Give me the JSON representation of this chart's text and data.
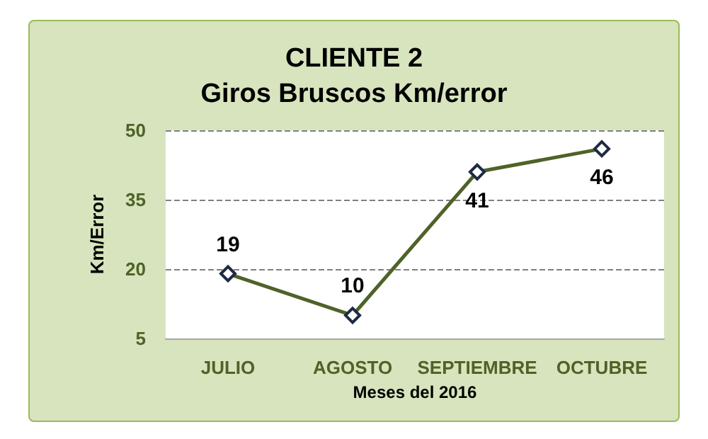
{
  "chart_data": {
    "type": "line",
    "title": "CLIENTE 2",
    "subtitle": "Giros Bruscos Km/error",
    "xlabel": "Meses del 2016",
    "ylabel": "Km/Error",
    "categories": [
      "JULIO",
      "AGOSTO",
      "SEPTIEMBRE",
      "OCTUBRE"
    ],
    "series": [
      {
        "color": "#4f6228",
        "values": [
          19,
          10,
          41,
          46
        ]
      }
    ],
    "ylim": [
      5,
      50
    ],
    "yticks": [
      5,
      20,
      35,
      50
    ],
    "grid": "y",
    "marker": "diamond",
    "line_style": "solid",
    "data_labels": true
  }
}
